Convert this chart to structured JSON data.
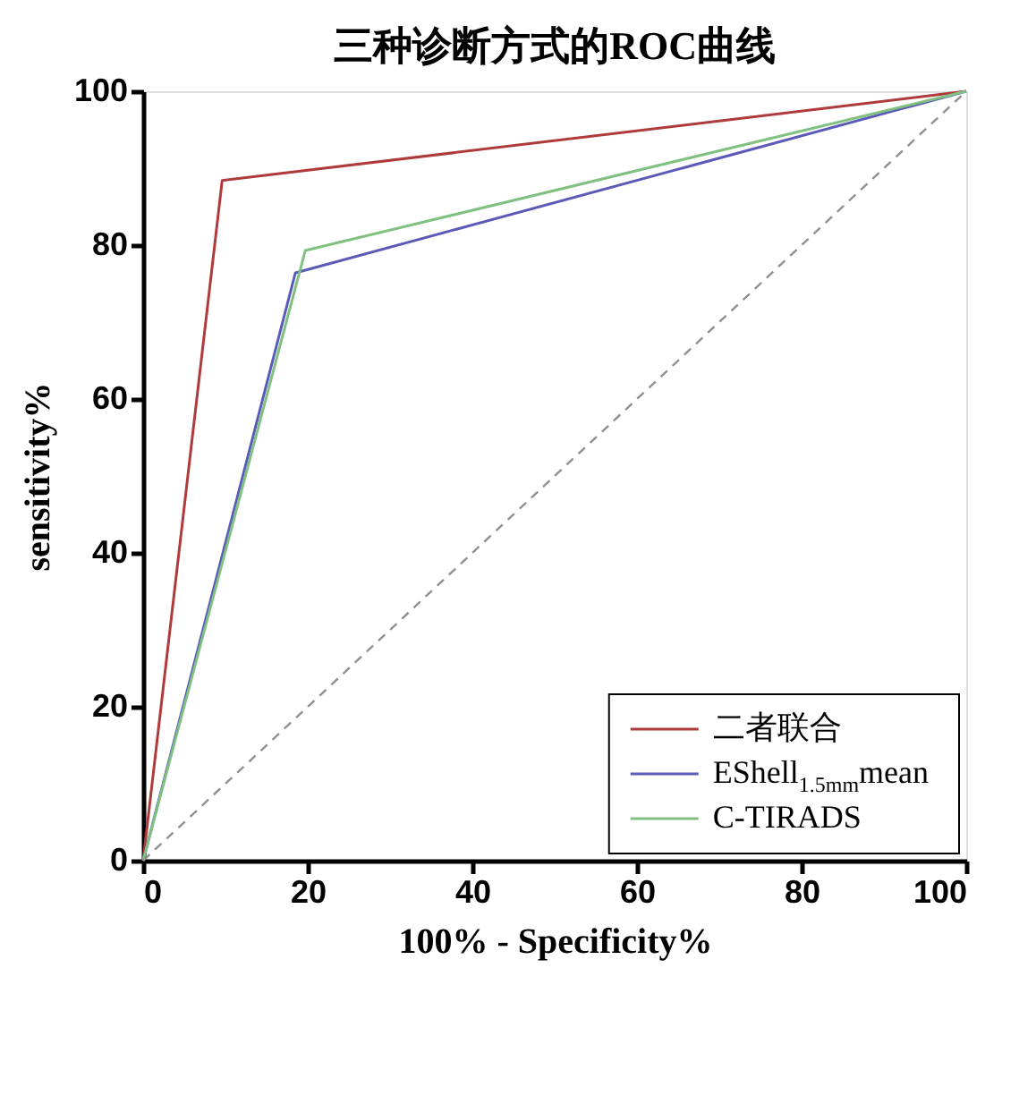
{
  "chart_data": {
    "type": "line",
    "title": "三种诊断方式的ROC曲线",
    "xlabel": "100% - Specificity%",
    "ylabel": "sensitivity%",
    "xlim": [
      0,
      100
    ],
    "ylim": [
      0,
      100
    ],
    "xticks": [
      0,
      20,
      40,
      60,
      80,
      100
    ],
    "yticks": [
      0,
      20,
      40,
      60,
      80,
      100
    ],
    "grid": false,
    "legend": "bottom right",
    "marker": "none",
    "series": [
      {
        "name": "二者联合",
        "color": "#b03a3a",
        "x": [
          0,
          9.6,
          100
        ],
        "values": [
          0,
          88.4,
          100
        ],
        "line_style": "solid"
      },
      {
        "name": "EShell$_{1.5mm}$mean",
        "color": "#5a5ab8",
        "x": [
          0,
          18.5,
          100
        ],
        "values": [
          0,
          76.4,
          100
        ],
        "line_style": "solid"
      },
      {
        "name": "C-TIRADS",
        "color": "#80c080",
        "x": [
          0,
          19.7,
          100
        ],
        "values": [
          0,
          79.3,
          100
        ],
        "line_style": "solid"
      },
      {
        "color": "#909090",
        "x": [
          0,
          100
        ],
        "values": [
          0,
          100
        ],
        "line_style": "dashed"
      }
    ]
  }
}
